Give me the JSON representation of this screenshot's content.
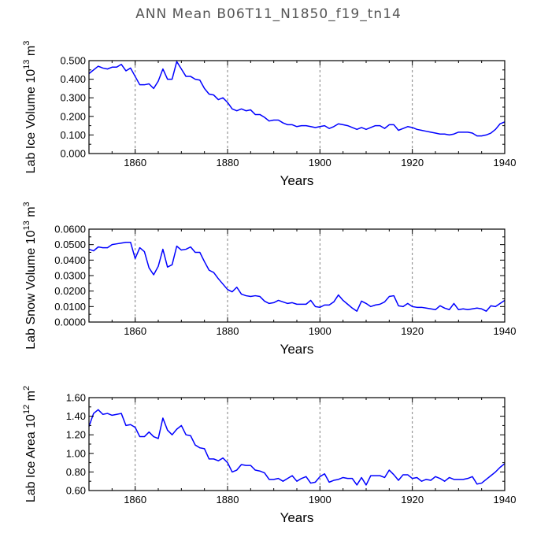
{
  "title": "ANN  Mean  B06T11_N1850_f19_tn14",
  "chart_data": [
    {
      "type": "line",
      "title": "",
      "xlabel": "Years",
      "ylabel": {
        "text": "Lab Ice Volume 10",
        "exp": "13",
        "unit": " m",
        "unit_exp": "3"
      },
      "xlim": [
        1850,
        1940
      ],
      "ylim": [
        0.0,
        0.5
      ],
      "xticks": [
        1860,
        1880,
        1900,
        1920,
        1940
      ],
      "yticks": [
        0.0,
        0.1,
        0.2,
        0.3,
        0.4,
        0.5
      ],
      "ytick_labels": [
        "0.000",
        "0.100",
        "0.200",
        "0.300",
        "0.400",
        "0.500"
      ],
      "grid_x": [
        1860,
        1880,
        1900,
        1920
      ],
      "color": "#0000ff",
      "series": [
        {
          "x": [
            1850,
            1851,
            1852,
            1853,
            1854,
            1855,
            1856,
            1857,
            1858,
            1859,
            1860,
            1861,
            1862,
            1863,
            1864,
            1865,
            1866,
            1867,
            1868,
            1869,
            1870,
            1871,
            1872,
            1873,
            1874,
            1875,
            1876,
            1877,
            1878,
            1879,
            1880,
            1881,
            1882,
            1883,
            1884,
            1885,
            1886,
            1887,
            1888,
            1889,
            1890,
            1891,
            1892,
            1893,
            1894,
            1895,
            1896,
            1897,
            1898,
            1899,
            1900,
            1901,
            1902,
            1903,
            1904,
            1905,
            1906,
            1907,
            1908,
            1909,
            1910,
            1911,
            1912,
            1913,
            1914,
            1915,
            1916,
            1917,
            1918,
            1919,
            1920,
            1921,
            1922,
            1923,
            1924,
            1925,
            1926,
            1927,
            1928,
            1929,
            1930,
            1931,
            1932,
            1933,
            1934,
            1935,
            1936,
            1937,
            1938,
            1939,
            1940
          ],
          "values": [
            0.43,
            0.45,
            0.47,
            0.46,
            0.455,
            0.465,
            0.465,
            0.48,
            0.445,
            0.46,
            0.415,
            0.37,
            0.37,
            0.375,
            0.35,
            0.39,
            0.455,
            0.4,
            0.4,
            0.495,
            0.455,
            0.415,
            0.415,
            0.4,
            0.395,
            0.35,
            0.32,
            0.315,
            0.29,
            0.3,
            0.275,
            0.24,
            0.23,
            0.24,
            0.23,
            0.235,
            0.21,
            0.21,
            0.195,
            0.175,
            0.18,
            0.18,
            0.165,
            0.155,
            0.155,
            0.145,
            0.15,
            0.15,
            0.145,
            0.14,
            0.145,
            0.15,
            0.135,
            0.145,
            0.16,
            0.155,
            0.15,
            0.14,
            0.13,
            0.14,
            0.13,
            0.14,
            0.15,
            0.15,
            0.135,
            0.155,
            0.155,
            0.125,
            0.135,
            0.145,
            0.14,
            0.13,
            0.125,
            0.12,
            0.115,
            0.11,
            0.105,
            0.105,
            0.1,
            0.105,
            0.115,
            0.115,
            0.115,
            0.11,
            0.095,
            0.095,
            0.1,
            0.11,
            0.13,
            0.16,
            0.17
          ]
        }
      ]
    },
    {
      "type": "line",
      "title": "",
      "xlabel": "Years",
      "ylabel": {
        "text": "Lab Snow Volume 10",
        "exp": "13",
        "unit": " m",
        "unit_exp": "3"
      },
      "xlim": [
        1850,
        1940
      ],
      "ylim": [
        0.0,
        0.06
      ],
      "xticks": [
        1860,
        1880,
        1900,
        1920,
        1940
      ],
      "yticks": [
        0.0,
        0.01,
        0.02,
        0.03,
        0.04,
        0.05,
        0.06
      ],
      "ytick_labels": [
        "0.0000",
        "0.0100",
        "0.0200",
        "0.0300",
        "0.0400",
        "0.0500",
        "0.0600"
      ],
      "grid_x": [
        1860,
        1880,
        1900,
        1920
      ],
      "color": "#0000ff",
      "series": [
        {
          "x": [
            1850,
            1851,
            1852,
            1853,
            1854,
            1855,
            1856,
            1857,
            1858,
            1859,
            1860,
            1861,
            1862,
            1863,
            1864,
            1865,
            1866,
            1867,
            1868,
            1869,
            1870,
            1871,
            1872,
            1873,
            1874,
            1875,
            1876,
            1877,
            1878,
            1879,
            1880,
            1881,
            1882,
            1883,
            1884,
            1885,
            1886,
            1887,
            1888,
            1889,
            1890,
            1891,
            1892,
            1893,
            1894,
            1895,
            1896,
            1897,
            1898,
            1899,
            1900,
            1901,
            1902,
            1903,
            1904,
            1905,
            1906,
            1907,
            1908,
            1909,
            1910,
            1911,
            1912,
            1913,
            1914,
            1915,
            1916,
            1917,
            1918,
            1919,
            1920,
            1921,
            1922,
            1923,
            1924,
            1925,
            1926,
            1927,
            1928,
            1929,
            1930,
            1931,
            1932,
            1933,
            1934,
            1935,
            1936,
            1937,
            1938,
            1939,
            1940
          ],
          "values": [
            0.047,
            0.046,
            0.0485,
            0.048,
            0.048,
            0.05,
            0.0505,
            0.051,
            0.0515,
            0.0515,
            0.041,
            0.048,
            0.0455,
            0.035,
            0.0305,
            0.036,
            0.047,
            0.0355,
            0.037,
            0.049,
            0.0465,
            0.047,
            0.0485,
            0.045,
            0.045,
            0.039,
            0.0335,
            0.032,
            0.028,
            0.0245,
            0.021,
            0.0195,
            0.0225,
            0.018,
            0.017,
            0.0165,
            0.017,
            0.0165,
            0.0135,
            0.012,
            0.0125,
            0.014,
            0.013,
            0.012,
            0.0125,
            0.0115,
            0.0115,
            0.0115,
            0.014,
            0.01,
            0.0095,
            0.011,
            0.011,
            0.013,
            0.0175,
            0.014,
            0.0115,
            0.009,
            0.007,
            0.0135,
            0.012,
            0.01,
            0.011,
            0.0115,
            0.013,
            0.0165,
            0.017,
            0.0105,
            0.01,
            0.012,
            0.01,
            0.0095,
            0.0095,
            0.009,
            0.0085,
            0.008,
            0.0105,
            0.009,
            0.008,
            0.012,
            0.008,
            0.0085,
            0.008,
            0.0085,
            0.009,
            0.0085,
            0.007,
            0.0105,
            0.01,
            0.012,
            0.014
          ]
        }
      ]
    },
    {
      "type": "line",
      "title": "",
      "xlabel": "Years",
      "ylabel": {
        "text": "Lab Ice Area 10",
        "exp": "12",
        "unit": " m",
        "unit_exp": "2"
      },
      "xlim": [
        1850,
        1940
      ],
      "ylim": [
        0.6,
        1.6
      ],
      "xticks": [
        1860,
        1880,
        1900,
        1920,
        1940
      ],
      "yticks": [
        0.6,
        0.8,
        1.0,
        1.2,
        1.4,
        1.6
      ],
      "ytick_labels": [
        "0.60",
        "0.80",
        "1.00",
        "1.20",
        "1.40",
        "1.60"
      ],
      "grid_x": [
        1860,
        1880,
        1900,
        1920
      ],
      "color": "#0000ff",
      "series": [
        {
          "x": [
            1850,
            1851,
            1852,
            1853,
            1854,
            1855,
            1856,
            1857,
            1858,
            1859,
            1860,
            1861,
            1862,
            1863,
            1864,
            1865,
            1866,
            1867,
            1868,
            1869,
            1870,
            1871,
            1872,
            1873,
            1874,
            1875,
            1876,
            1877,
            1878,
            1879,
            1880,
            1881,
            1882,
            1883,
            1884,
            1885,
            1886,
            1887,
            1888,
            1889,
            1890,
            1891,
            1892,
            1893,
            1894,
            1895,
            1896,
            1897,
            1898,
            1899,
            1900,
            1901,
            1902,
            1903,
            1904,
            1905,
            1906,
            1907,
            1908,
            1909,
            1910,
            1911,
            1912,
            1913,
            1914,
            1915,
            1916,
            1917,
            1918,
            1919,
            1920,
            1921,
            1922,
            1923,
            1924,
            1925,
            1926,
            1927,
            1928,
            1929,
            1930,
            1931,
            1932,
            1933,
            1934,
            1935,
            1936,
            1937,
            1938,
            1939,
            1940
          ],
          "values": [
            1.29,
            1.43,
            1.47,
            1.42,
            1.43,
            1.41,
            1.42,
            1.43,
            1.3,
            1.31,
            1.28,
            1.18,
            1.18,
            1.23,
            1.18,
            1.16,
            1.38,
            1.25,
            1.2,
            1.26,
            1.3,
            1.2,
            1.19,
            1.09,
            1.06,
            1.05,
            0.94,
            0.94,
            0.92,
            0.95,
            0.9,
            0.8,
            0.82,
            0.88,
            0.87,
            0.87,
            0.82,
            0.81,
            0.79,
            0.72,
            0.72,
            0.73,
            0.7,
            0.73,
            0.76,
            0.7,
            0.73,
            0.75,
            0.68,
            0.69,
            0.75,
            0.78,
            0.69,
            0.71,
            0.72,
            0.74,
            0.73,
            0.73,
            0.66,
            0.74,
            0.66,
            0.76,
            0.76,
            0.76,
            0.74,
            0.82,
            0.77,
            0.71,
            0.77,
            0.77,
            0.73,
            0.74,
            0.7,
            0.72,
            0.71,
            0.75,
            0.73,
            0.7,
            0.74,
            0.72,
            0.72,
            0.72,
            0.73,
            0.75,
            0.67,
            0.68,
            0.72,
            0.76,
            0.8,
            0.85,
            0.89
          ]
        }
      ]
    }
  ]
}
